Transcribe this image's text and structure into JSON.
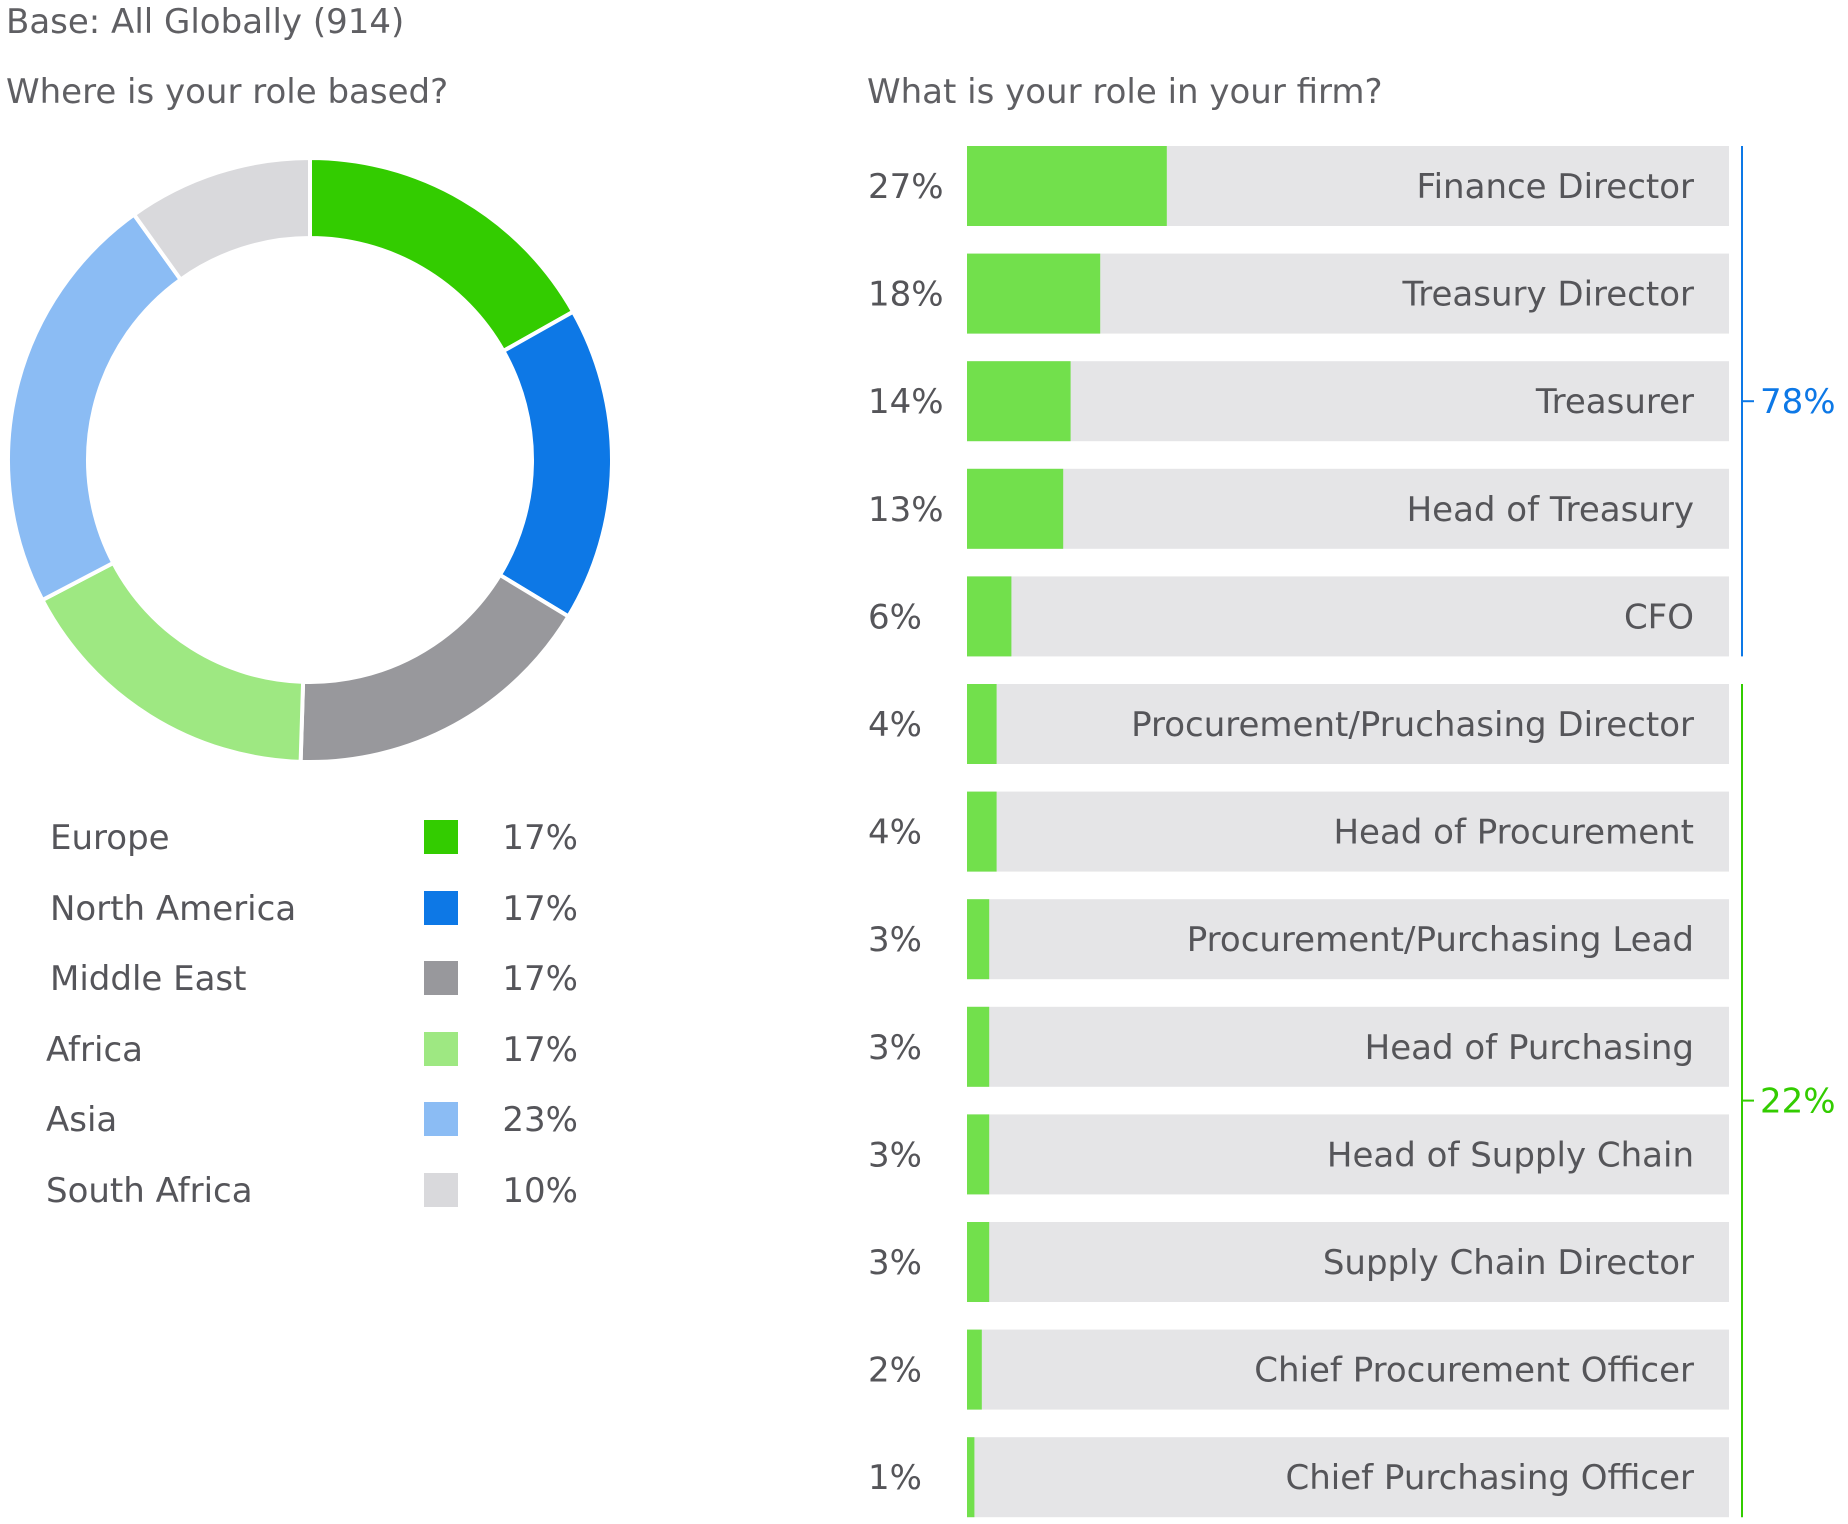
{
  "header": {
    "base_note": "Base: All Globally (914)"
  },
  "chart_data": [
    {
      "type": "pie",
      "variant": "donut",
      "title": "Where is your role based?",
      "categories": [
        "Europe",
        "North America",
        "Middle East",
        "Africa",
        "Asia",
        "South Africa"
      ],
      "values": [
        17,
        17,
        17,
        17,
        23,
        10
      ],
      "value_labels": [
        "17%",
        "17%",
        "17%",
        "17%",
        "23%",
        "10%"
      ],
      "colors": [
        "#33cc00",
        "#0d78e6",
        "#98989c",
        "#9ee882",
        "#8bbcf4",
        "#d9d9dc"
      ],
      "legend_position": "bottom"
    },
    {
      "type": "bar",
      "orientation": "horizontal",
      "title": "What is your role in your firm?",
      "xlim": [
        0,
        100
      ],
      "bar_color": "#72e04c",
      "track_color": "#e5e5e7",
      "categories": [
        "Finance Director",
        "Treasury Director",
        "Treasurer",
        "Head of Treasury",
        "CFO",
        "Procurement/Pruchasing Director",
        "Head of Procurement",
        "Procurement/Purchasing Lead",
        "Head of Purchasing",
        "Head of Supply Chain",
        "Supply Chain Director",
        "Chief Procurement Officer",
        "Chief Purchasing Officer"
      ],
      "values": [
        27,
        18,
        14,
        13,
        6,
        4,
        4,
        3,
        3,
        3,
        3,
        2,
        1
      ],
      "value_labels": [
        "27%",
        "18%",
        "14%",
        "13%",
        "6%",
        "4%",
        "4%",
        "3%",
        "3%",
        "3%",
        "3%",
        "2%",
        "1%"
      ],
      "groups": [
        {
          "label": "78%",
          "start": 0,
          "end": 4,
          "color": "#0d78e6"
        },
        {
          "label": "22%",
          "start": 5,
          "end": 12,
          "color": "#33cc00"
        }
      ]
    }
  ]
}
